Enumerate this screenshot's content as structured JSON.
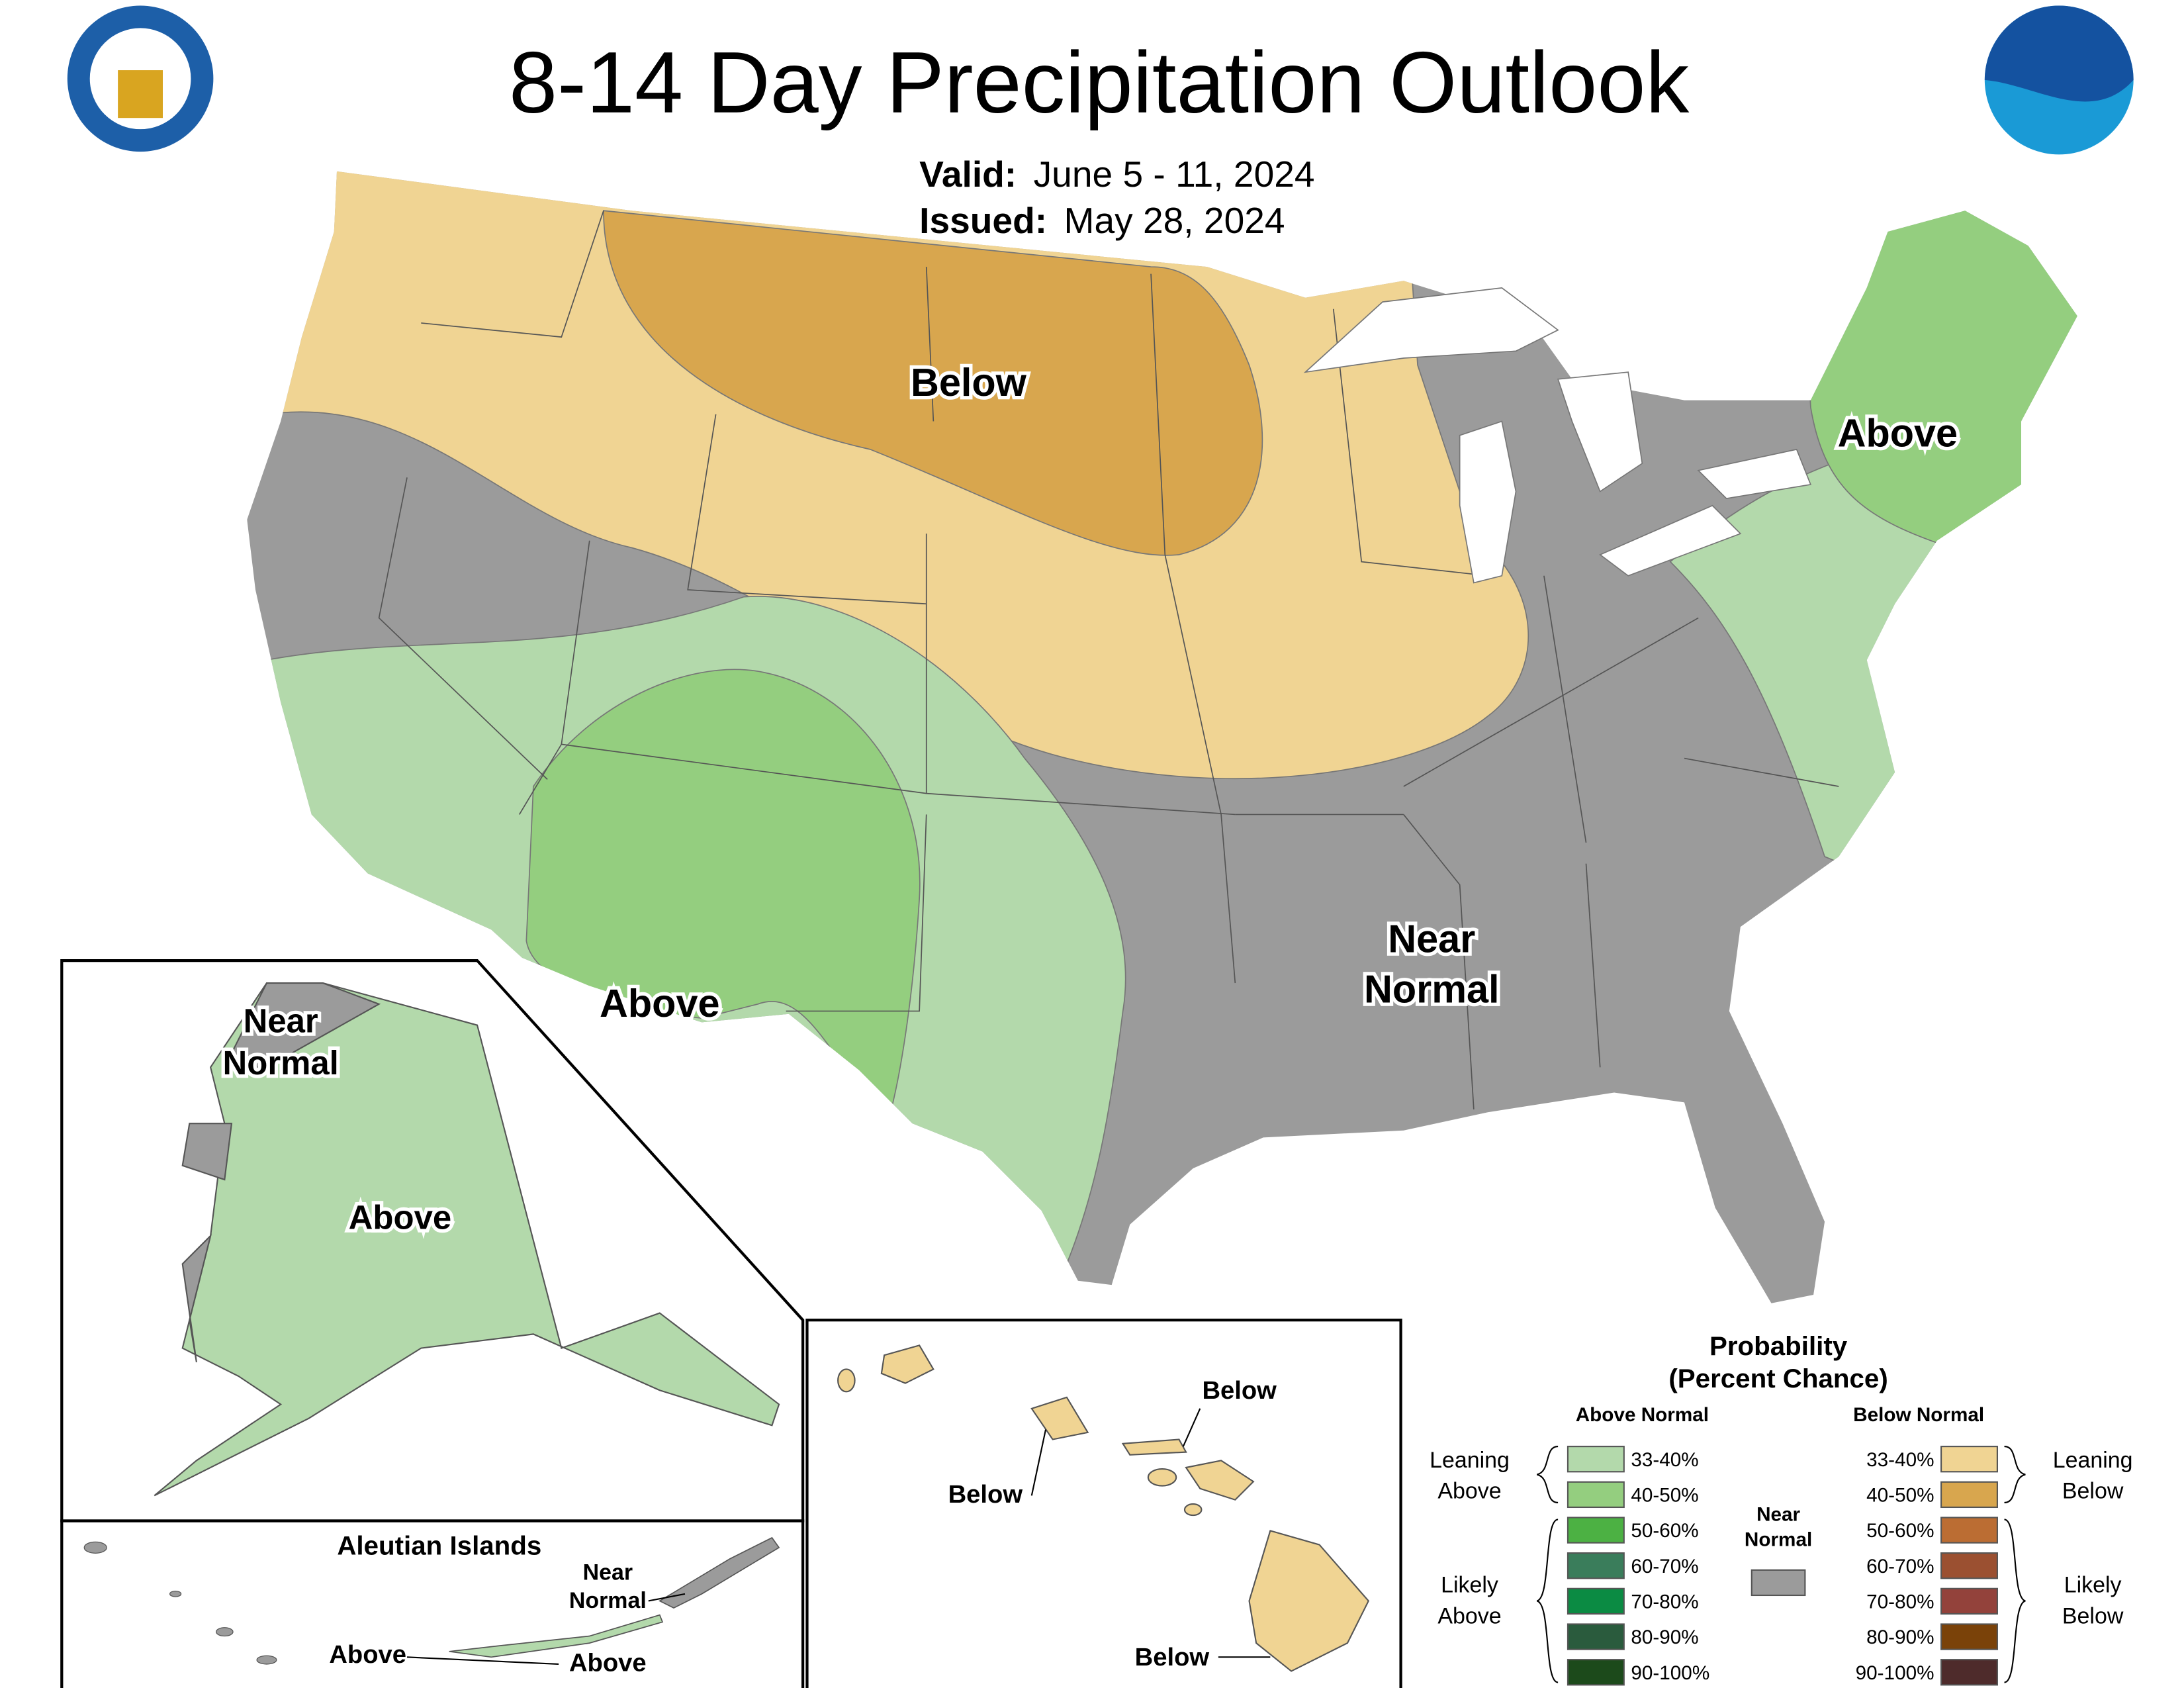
{
  "title": "8-14 Day Precipitation Outlook",
  "valid": {
    "label": "Valid:",
    "value": "June 5 - 11, 2024"
  },
  "issued": {
    "label": "Issued:",
    "value": "May 28, 2024"
  },
  "conus_labels": {
    "north": "Below",
    "southwest": "Above",
    "northeast": "Above",
    "southeast": [
      "Near",
      "Normal"
    ]
  },
  "alaska": {
    "near": [
      "Near",
      "Normal"
    ],
    "main": "Above"
  },
  "aleutians": {
    "title": "Aleutian Islands",
    "near": [
      "Near",
      "Normal"
    ],
    "west": "Above",
    "east": "Above"
  },
  "hawaii": {
    "north": "Below",
    "west": "Below",
    "south": "Below"
  },
  "legend": {
    "title": "Probability",
    "subtitle": "(Percent Chance)",
    "above_header": "Above Normal",
    "below_header": "Below Normal",
    "near": [
      "Near",
      "Normal"
    ],
    "near_color": "#9b9b9b",
    "leaning_above": [
      "Leaning",
      "Above"
    ],
    "likely_above": [
      "Likely",
      "Above"
    ],
    "leaning_below": [
      "Leaning",
      "Below"
    ],
    "likely_below": [
      "Likely",
      "Below"
    ],
    "above": [
      {
        "range": "33-40%",
        "color": "#b3d9ab"
      },
      {
        "range": "40-50%",
        "color": "#94ce7f"
      },
      {
        "range": "50-60%",
        "color": "#4cb143"
      },
      {
        "range": "60-70%",
        "color": "#3a7d5b"
      },
      {
        "range": "70-80%",
        "color": "#0b8b43"
      },
      {
        "range": "80-90%",
        "color": "#2a5b3d"
      },
      {
        "range": "90-100%",
        "color": "#1c4a1b"
      }
    ],
    "below": [
      {
        "range": "33-40%",
        "color": "#f0d493"
      },
      {
        "range": "40-50%",
        "color": "#d8a64e"
      },
      {
        "range": "50-60%",
        "color": "#bb6d33"
      },
      {
        "range": "60-70%",
        "color": "#9b5031"
      },
      {
        "range": "70-80%",
        "color": "#93423b"
      },
      {
        "range": "80-90%",
        "color": "#7a4209"
      },
      {
        "range": "90-100%",
        "color": "#4e2b2b"
      }
    ]
  }
}
